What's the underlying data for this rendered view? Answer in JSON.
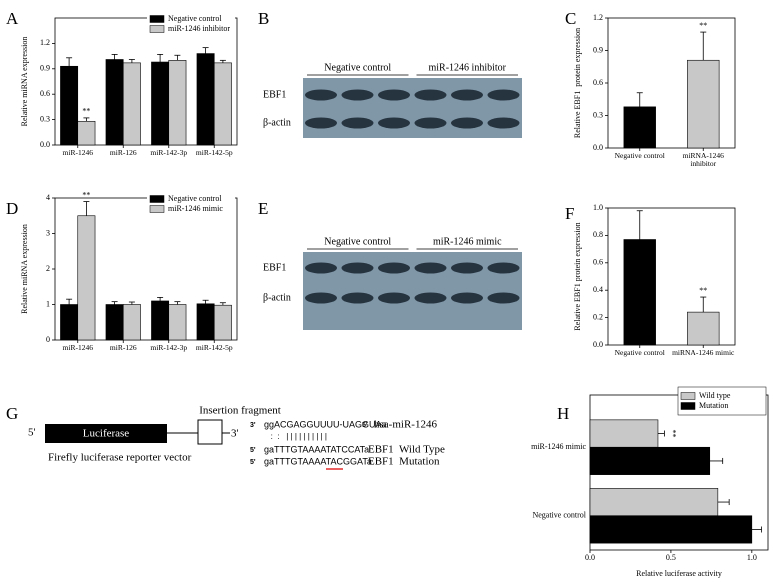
{
  "chart_data": [
    {
      "type": "bar",
      "panel": "A",
      "ylabel": "Relative miRNA expression",
      "categories": [
        "miR-1246",
        "miR-126",
        "miR-142-3p",
        "miR-142-5p"
      ],
      "series": [
        {
          "name": "Negative control",
          "color": "#000000",
          "values": [
            0.93,
            1.01,
            0.98,
            1.08
          ],
          "errors": [
            0.1,
            0.06,
            0.09,
            0.07
          ],
          "significance": [
            null,
            null,
            null,
            null
          ]
        },
        {
          "name": "miR-1246 inhibitor",
          "color": "#c8c8c8",
          "values": [
            0.28,
            0.97,
            1.0,
            0.97
          ],
          "errors": [
            0.04,
            0.04,
            0.06,
            0.03
          ],
          "significance": [
            "**",
            null,
            null,
            null
          ]
        }
      ],
      "ylim": [
        0,
        1.5
      ],
      "yticks": [
        {
          "value": 0,
          "label": "0.0"
        },
        0.3,
        0.6,
        0.9,
        1.2
      ],
      "legend": "upper right"
    },
    {
      "type": "bar",
      "panel": "C",
      "ylabel": "Relative EBF1  protein expression",
      "categories": [
        "Negative control",
        "miRNA-1246 inhibitor"
      ],
      "values": [
        0.38,
        0.81
      ],
      "errors": [
        0.13,
        0.26
      ],
      "colors": [
        "#000000",
        "#c8c8c8"
      ],
      "significance": [
        null,
        "**"
      ],
      "ylim": [
        0,
        1.2
      ],
      "yticks": [
        {
          "value": 0,
          "label": "0.0"
        },
        0.3,
        0.6,
        0.9,
        1.2
      ]
    },
    {
      "type": "bar",
      "panel": "D",
      "ylabel": "Relative miRNA expression",
      "categories": [
        "miR-1246",
        "miR-126",
        "miR-142-3p",
        "miR-142-5p"
      ],
      "series": [
        {
          "name": "Negative control",
          "color": "#000000",
          "values": [
            1.0,
            1.0,
            1.1,
            1.02
          ],
          "errors": [
            0.15,
            0.08,
            0.1,
            0.1
          ],
          "significance": [
            null,
            null,
            null,
            null
          ]
        },
        {
          "name": "miR-1246 mimic",
          "color": "#c8c8c8",
          "values": [
            3.5,
            1.0,
            1.0,
            0.98
          ],
          "errors": [
            0.4,
            0.07,
            0.08,
            0.07
          ],
          "significance": [
            "**",
            null,
            null,
            null
          ]
        }
      ],
      "ylim": [
        0,
        4
      ],
      "yticks": [
        0,
        1,
        2,
        3,
        4
      ],
      "legend": "upper right"
    },
    {
      "type": "bar",
      "panel": "F",
      "ylabel": "Relative EBF1 protein expression",
      "categories": [
        "Negative control",
        "miRNA-1246 mimic"
      ],
      "values": [
        0.77,
        0.24
      ],
      "errors": [
        0.21,
        0.11
      ],
      "colors": [
        "#000000",
        "#c8c8c8"
      ],
      "significance": [
        null,
        "**"
      ],
      "ylim": [
        0,
        1
      ],
      "yticks": [
        {
          "value": 0,
          "label": "0.0"
        },
        0.2,
        0.4,
        0.6,
        0.8,
        {
          "value": 1,
          "label": "1.0"
        }
      ]
    },
    {
      "type": "hbar",
      "panel": "H",
      "xlabel": "Relative luciferase activity",
      "categories": [
        "miR-1246 mimic",
        "Negative control"
      ],
      "series": [
        {
          "name": "Wild type",
          "color": "#c8c8c8",
          "values": [
            0.42,
            0.79
          ],
          "errors": [
            0.04,
            0.07
          ],
          "significance": [
            "**",
            null
          ]
        },
        {
          "name": "Mutation",
          "color": "#000000",
          "values": [
            0.74,
            1.0
          ],
          "errors": [
            0.08,
            0.06
          ],
          "significance": [
            null,
            null
          ]
        }
      ],
      "xlim": [
        0,
        1.1
      ],
      "xticks": [
        {
          "value": 0,
          "label": "0.0"
        },
        0.5,
        {
          "value": 1,
          "label": "1.0"
        }
      ],
      "legend": "upper right"
    }
  ],
  "blots": [
    {
      "panel": "B",
      "groups": [
        "Negative control",
        "miR-1246 inhibitor"
      ],
      "rows": [
        "EBF1",
        "β-actin"
      ]
    },
    {
      "panel": "E",
      "groups": [
        "Negative control",
        "miR-1246 mimic"
      ],
      "rows": [
        "EBF1",
        "β-actin"
      ]
    }
  ],
  "diagram": {
    "panel": "G",
    "five_prime": "5'",
    "three_prime": "3'",
    "gene": "Luciferase",
    "insert": "Insertion fragment",
    "caption": "Firefly luciferase reporter vector",
    "alignment": [
      {
        "left": "3'",
        "seq": "ggACGAGGUUUU-UAGGUAa",
        "right": "5'",
        "name": "hsa-miR-1246"
      },
      {
        "left": "5'",
        "seq": "gaTTTGTAAAATATCCATa",
        "name": "EBF1  Wild Type"
      },
      {
        "left": "5'",
        "seq": "gaTTTGTAAAATACGGATa",
        "name": "EBF1  Mutation"
      }
    ],
    "pairing": "   :  :   | | | | | | | | | |"
  }
}
